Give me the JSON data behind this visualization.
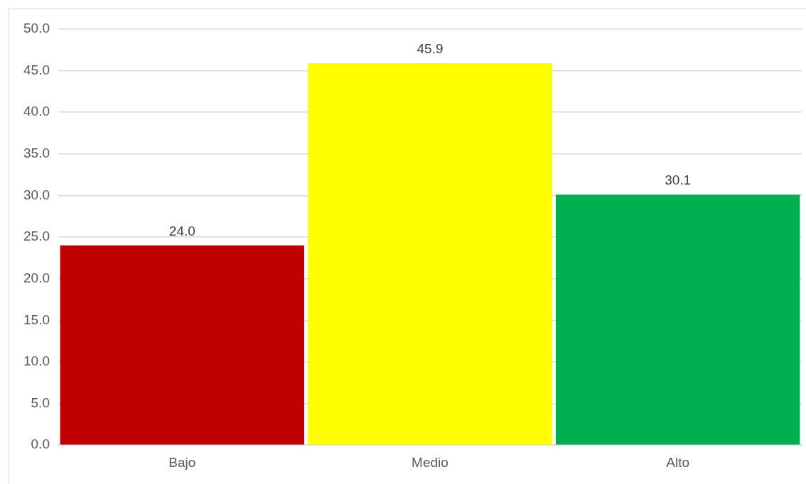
{
  "chart_data": {
    "type": "bar",
    "categories": [
      "Bajo",
      "Medio",
      "Alto"
    ],
    "values": [
      24.0,
      45.9,
      30.1
    ],
    "colors": [
      "#c00000",
      "#ffff00",
      "#00b050"
    ],
    "value_labels": [
      "24.0",
      "45.9",
      "30.1"
    ],
    "ylim": [
      0,
      50
    ],
    "yticks": [
      {
        "value": 0,
        "label": "0.0"
      },
      {
        "value": 5,
        "label": "5.0"
      },
      {
        "value": 10,
        "label": "10.0"
      },
      {
        "value": 15,
        "label": "15.0"
      },
      {
        "value": 20,
        "label": "20.0"
      },
      {
        "value": 25,
        "label": "25.0"
      },
      {
        "value": 30,
        "label": "30.0"
      },
      {
        "value": 35,
        "label": "35.0"
      },
      {
        "value": 40,
        "label": "40.0"
      },
      {
        "value": 45,
        "label": "45.0"
      },
      {
        "value": 50,
        "label": "50.0"
      }
    ],
    "grid": "y",
    "legend": false
  }
}
